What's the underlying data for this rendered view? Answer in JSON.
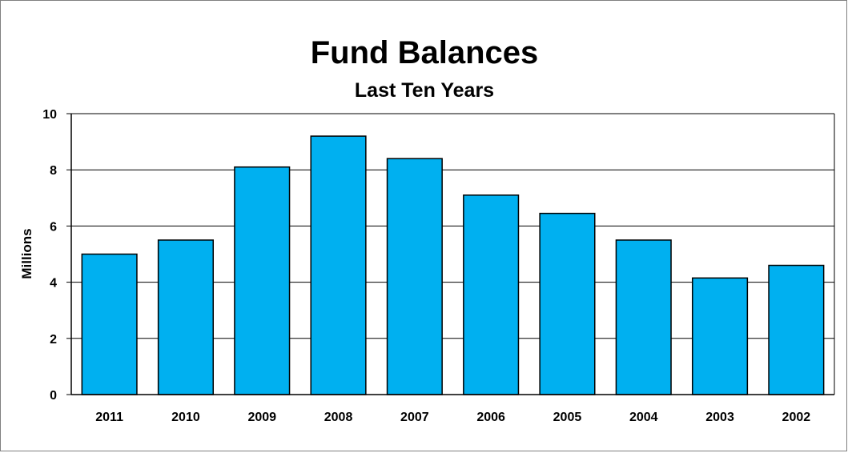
{
  "chart_data": {
    "type": "bar",
    "title": "Fund Balances",
    "subtitle": "Last Ten Years",
    "xlabel": "",
    "ylabel": "Millions",
    "categories": [
      "2011",
      "2010",
      "2009",
      "2008",
      "2007",
      "2006",
      "2005",
      "2004",
      "2003",
      "2002"
    ],
    "values": [
      5.0,
      5.5,
      8.1,
      9.2,
      8.4,
      7.1,
      6.45,
      5.5,
      4.15,
      4.6
    ],
    "ylim": [
      0,
      10
    ],
    "yticks": [
      "0",
      "2",
      "4",
      "6",
      "8",
      "10"
    ],
    "grid": true,
    "legend": false,
    "bar_color": "#00b0f0",
    "bar_edge_color": "#000000"
  }
}
